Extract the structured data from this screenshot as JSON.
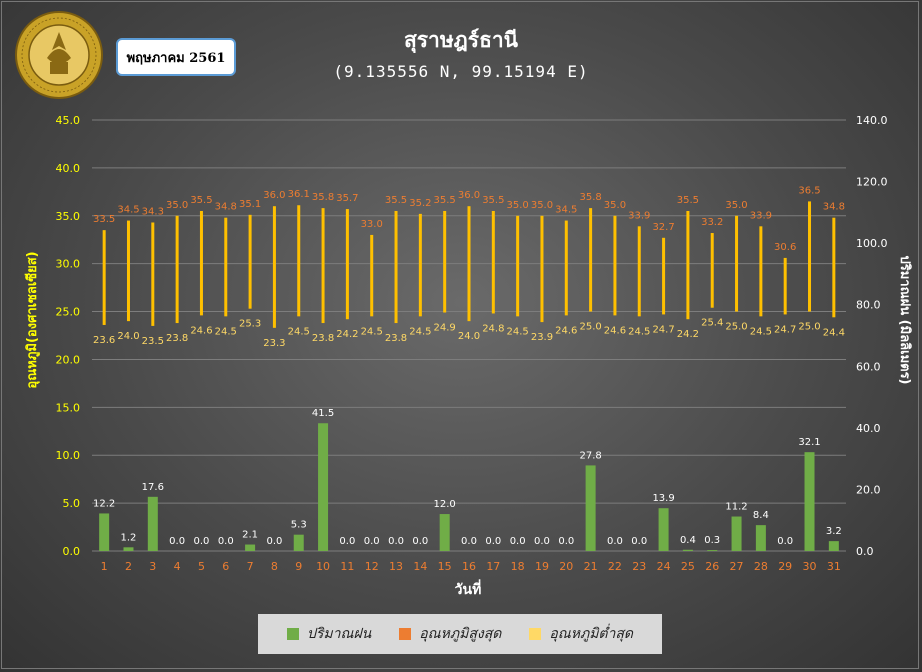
{
  "header": {
    "title": "สุราษฎร์ธานี",
    "subtitle": "(9.135556 N, 99.15194 E)",
    "month_label": "พฤษภาคม 2561",
    "logo_text": "กรมอุตุนิยมวิทยา METEOROLOGICAL DEPARTMENT"
  },
  "colors": {
    "rain": "#70ad47",
    "tmax": "#ed7d31",
    "tmin": "#ffd966",
    "temp_bar": "#ffc000",
    "left_axis": "#ffff00",
    "day_labels": "#ed7d31",
    "rain_labels": "#ffffff"
  },
  "chart_data": {
    "type": "bar",
    "xlabel": "วันที่",
    "ylabel_left": "อุณหภูมิ(องศาเซลเซียส)",
    "ylabel_right": "ปริมาณฝน (มิลลิเมตร)",
    "ylim_left": [
      0,
      45
    ],
    "ylim_right": [
      0,
      140
    ],
    "yticks_left": [
      "0.0",
      "5.0",
      "10.0",
      "15.0",
      "20.0",
      "25.0",
      "30.0",
      "35.0",
      "40.0",
      "45.0"
    ],
    "yticks_right": [
      "0.0",
      "20.0",
      "40.0",
      "60.0",
      "80.0",
      "100.0",
      "120.0",
      "140.0"
    ],
    "grid": true,
    "legend_position": "bottom",
    "categories": [
      "1",
      "2",
      "3",
      "4",
      "5",
      "6",
      "7",
      "8",
      "9",
      "10",
      "11",
      "12",
      "13",
      "14",
      "15",
      "16",
      "17",
      "18",
      "19",
      "20",
      "21",
      "22",
      "23",
      "24",
      "25",
      "26",
      "27",
      "28",
      "29",
      "30",
      "31"
    ],
    "series": [
      {
        "name": "ปริมาณฝน",
        "axis": "right",
        "values": [
          12.2,
          1.2,
          17.6,
          0.0,
          0.0,
          0.0,
          2.1,
          0.0,
          5.3,
          41.5,
          0.0,
          0.0,
          0.0,
          0.0,
          12.0,
          0.0,
          0.0,
          0.0,
          0.0,
          0.0,
          27.8,
          0.0,
          0.0,
          13.9,
          0.4,
          0.3,
          11.2,
          8.4,
          0.0,
          32.1,
          3.2
        ]
      },
      {
        "name": "อุณหภูมิสูงสุด",
        "axis": "left",
        "values": [
          33.5,
          34.5,
          34.3,
          35.0,
          35.5,
          34.8,
          35.1,
          36.0,
          36.1,
          35.8,
          35.7,
          33.0,
          35.5,
          35.2,
          35.5,
          36.0,
          35.5,
          35.0,
          35.0,
          34.5,
          35.8,
          35.0,
          33.9,
          32.7,
          35.5,
          33.2,
          35.0,
          33.9,
          30.6,
          36.5,
          34.8
        ]
      },
      {
        "name": "อุณหภูมิต่ำสุด",
        "axis": "left",
        "values": [
          23.6,
          24.0,
          23.5,
          23.8,
          24.6,
          24.5,
          25.3,
          23.3,
          24.5,
          23.8,
          24.2,
          24.5,
          23.8,
          24.5,
          24.9,
          24.0,
          24.8,
          24.5,
          23.9,
          24.6,
          25.0,
          24.6,
          24.5,
          24.7,
          24.2,
          25.4,
          25.0,
          24.5,
          24.7,
          25.0,
          24.4
        ]
      }
    ]
  }
}
